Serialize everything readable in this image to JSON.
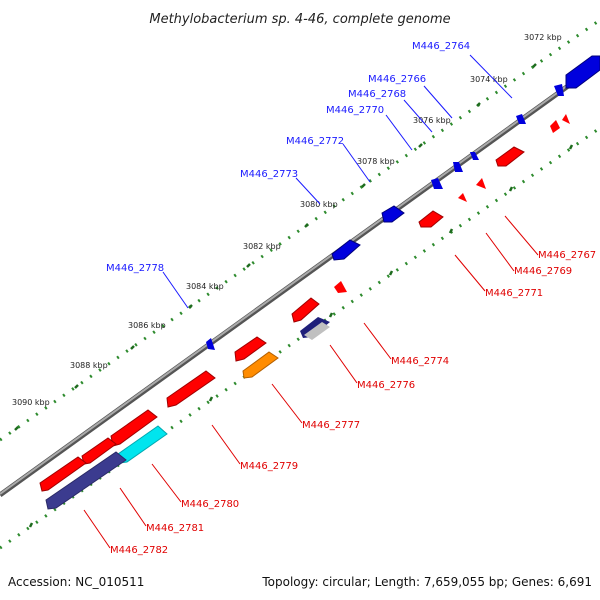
{
  "title": "Methylobacterium sp. 4-46, complete genome",
  "accession_label": "Accession: NC_010511",
  "summary_label": "Topology: circular; Length: 7,659,055 bp; Genes: 6,691",
  "colors": {
    "backbone": "#8a8a8a",
    "tick_dots": "#2e8b2e",
    "forward_label": "#1a1aff",
    "reverse_label": "#e00000",
    "forward_feature": "#0000dd",
    "reverse_feature": "#ff0000",
    "orange_feature": "#ff8c00",
    "cyan_feature": "#00e5ee",
    "navy_feature": "#3b3b8f"
  },
  "ruler_labels": [
    "3072 kbp",
    "3074 kbp",
    "3076 kbp",
    "3078 kbp",
    "3080 kbp",
    "3082 kbp",
    "3084 kbp",
    "3086 kbp",
    "3088 kbp",
    "3090 kbp"
  ],
  "forward_genes": [
    "M446_2764",
    "M446_2766",
    "M446_2768",
    "M446_2770",
    "M446_2772",
    "M446_2773",
    "M446_2778"
  ],
  "reverse_genes": [
    "M446_2767",
    "M446_2769",
    "M446_2771",
    "M446_2774",
    "M446_2776",
    "M446_2777",
    "M446_2779",
    "M446_2780",
    "M446_2781",
    "M446_2782"
  ]
}
